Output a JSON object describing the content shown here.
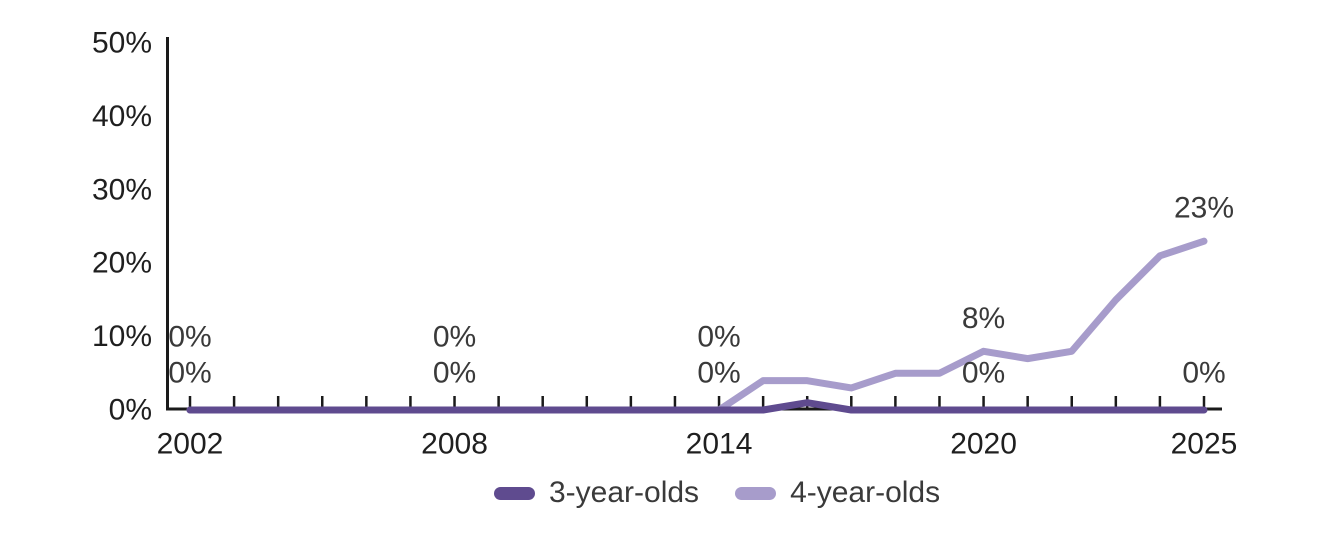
{
  "chart_data": {
    "type": "line",
    "title": "",
    "x": [
      2002,
      2003,
      2004,
      2005,
      2006,
      2007,
      2008,
      2009,
      2010,
      2011,
      2012,
      2013,
      2014,
      2015,
      2016,
      2017,
      2018,
      2019,
      2020,
      2021,
      2022,
      2023,
      2024,
      2025
    ],
    "x_labeled_years": [
      2002,
      2008,
      2014,
      2020,
      2025
    ],
    "y_ticks": [
      0,
      10,
      20,
      30,
      40,
      50
    ],
    "y_tick_labels": [
      "0%",
      "10%",
      "20%",
      "30%",
      "40%",
      "50%"
    ],
    "ylim": [
      0,
      50
    ],
    "grid": false,
    "legend_position": "bottom-center",
    "axis_color": "#1a1a1a",
    "label_color": "#3a3a3a",
    "series": [
      {
        "name": "3-year-olds",
        "color": "#5F4B8F",
        "values": [
          0,
          0,
          0,
          0,
          0,
          0,
          0,
          0,
          0,
          0,
          0,
          0,
          0,
          0,
          1,
          0,
          0,
          0,
          0,
          0,
          0,
          0,
          0,
          0
        ],
        "data_labels": [
          "0%",
          "0%",
          "0%",
          "0%",
          "0%"
        ]
      },
      {
        "name": "4-year-olds",
        "color": "#A79CCB",
        "values": [
          0,
          0,
          0,
          0,
          0,
          0,
          0,
          0,
          0,
          0,
          0,
          0,
          0,
          4,
          4,
          3,
          5,
          5,
          8,
          7,
          8,
          15,
          21,
          23
        ],
        "data_labels": [
          "0%",
          "0%",
          "0%",
          "8%",
          "23%"
        ]
      }
    ]
  }
}
